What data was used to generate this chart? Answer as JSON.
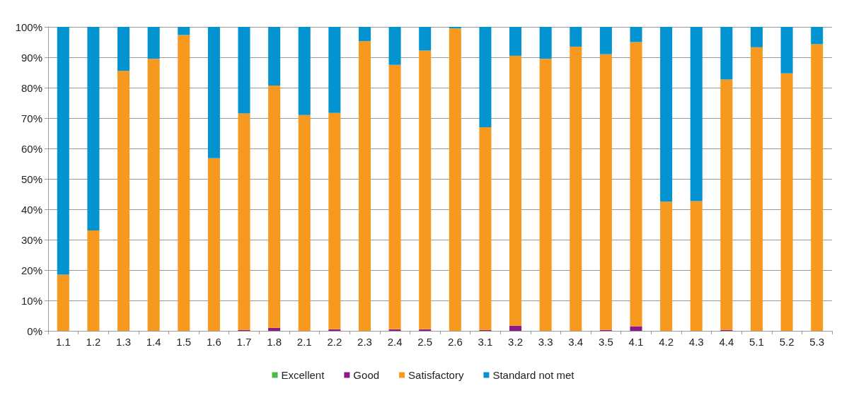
{
  "chart_data": {
    "type": "bar",
    "stacked": true,
    "categories": [
      "1.1",
      "1.2",
      "1.3",
      "1.4",
      "1.5",
      "1.6",
      "1.7",
      "1.8",
      "2.1",
      "2.2",
      "2.3",
      "2.4",
      "2.5",
      "2.6",
      "3.1",
      "3.2",
      "3.3",
      "3.4",
      "3.5",
      "4.1",
      "4.2",
      "4.3",
      "4.4",
      "5.1",
      "5.2",
      "5.3"
    ],
    "series": [
      {
        "name": "Excellent",
        "color": "#4cb848",
        "values": [
          0,
          0,
          0,
          0,
          0,
          0,
          0,
          0,
          0,
          0,
          0,
          0,
          0,
          0,
          0,
          0,
          0,
          0,
          0,
          0,
          0,
          0,
          0,
          0,
          0,
          0
        ]
      },
      {
        "name": "Good",
        "color": "#8b1a89",
        "values": [
          0,
          0,
          0,
          0,
          0,
          0,
          0.3,
          1,
          0,
          0.5,
          0,
          0.5,
          0.5,
          0,
          0.3,
          1.7,
          0,
          0,
          0.3,
          1.5,
          0,
          0,
          0.3,
          0,
          0,
          0
        ]
      },
      {
        "name": "Satisfactory",
        "color": "#f7991f",
        "values": [
          18.5,
          33,
          85.5,
          89.5,
          97.3,
          56.8,
          71.2,
          79.7,
          71,
          71.2,
          95.3,
          87,
          91.7,
          99.5,
          66.7,
          88.8,
          89.5,
          93.5,
          90.7,
          93.5,
          42.5,
          42.7,
          82.4,
          93.3,
          84.7,
          94.3
        ]
      },
      {
        "name": "Standard not met",
        "color": "#0393d0",
        "values": [
          81.5,
          67,
          14.5,
          10.5,
          2.7,
          43.2,
          28.5,
          19.3,
          29,
          28.3,
          4.7,
          12.5,
          7.8,
          0.5,
          33,
          9.5,
          10.5,
          6.5,
          9,
          5,
          57.5,
          57.3,
          17.3,
          6.7,
          15.3,
          5.7
        ]
      }
    ],
    "ylim": [
      0,
      100
    ],
    "yticks": [
      {
        "value": 0,
        "label": "0%"
      },
      {
        "value": 10,
        "label": "10%"
      },
      {
        "value": 20,
        "label": "20%"
      },
      {
        "value": 30,
        "label": "30%"
      },
      {
        "value": 40,
        "label": "40%"
      },
      {
        "value": 50,
        "label": "50%"
      },
      {
        "value": 60,
        "label": "60%"
      },
      {
        "value": 70,
        "label": "70%"
      },
      {
        "value": 80,
        "label": "80%"
      },
      {
        "value": 90,
        "label": "90%"
      },
      {
        "value": 100,
        "label": "100%"
      }
    ],
    "grid": "y",
    "legend": "bottom"
  }
}
